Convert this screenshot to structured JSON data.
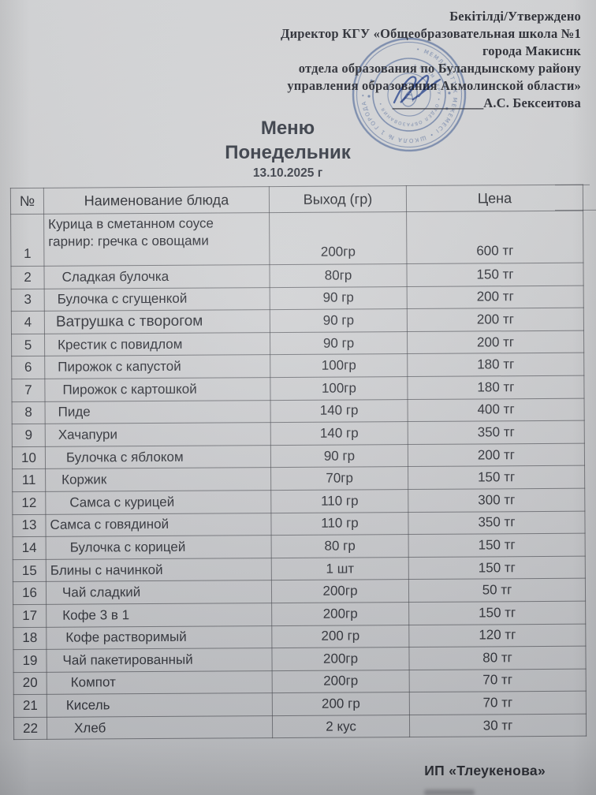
{
  "approval": {
    "lines": [
      "Бекітілді/Утверждено",
      "Директор КГУ «Общеобразовательная школа №1",
      "города Макиснк",
      "отдела образования по Буландынскому району",
      "управления образования Акмолинской области»"
    ],
    "signature_underscores": "______________",
    "signatory": "А.С. Бексеитова"
  },
  "title": {
    "menu": "Меню",
    "day": "Понедельник",
    "date": "13.10.2025 г"
  },
  "stamp": {
    "color": "#4e6fae",
    "outer_ring_text": "• МЕМЛЕКЕТТІК МЕКЕМЕСІ • ШКОЛА № 1 ГОРОДА •",
    "inner_ring_text": "• БІЛІМ БЕРУ • ОТДЕЛ ОБРАЗОВАНИЯ •"
  },
  "table": {
    "headers": {
      "num": "№",
      "name": "Наименование блюда",
      "weight": "Выход (гр)",
      "price": "Цена"
    },
    "rows": [
      {
        "num": "1",
        "name_lines": [
          "Курица в сметанном соусе",
          "гарнир: гречка с овощами"
        ],
        "name": "Курица в сметанном соусе гарнир: гречка с овощами",
        "weight": "200гр",
        "price": "600 тг",
        "indent": 5
      },
      {
        "num": "2",
        "name": "Сладкая булочка",
        "weight": "80гр",
        "price": "150 тг",
        "indent": 22
      },
      {
        "num": "3",
        "name": "Булочка с сгущенкой",
        "weight": "90 гр",
        "price": "200 тг",
        "indent": 16
      },
      {
        "num": "4",
        "name": "Ватрушка с творогом",
        "weight": "90 гр",
        "price": "200 тг",
        "indent": 14,
        "large": true
      },
      {
        "num": "5",
        "name": "Крестик с повидлом",
        "weight": "90 гр",
        "price": "200 тг",
        "indent": 16
      },
      {
        "num": "6",
        "name": "Пирожок с капустой",
        "weight": "100гр",
        "price": "180 тг",
        "indent": 16
      },
      {
        "num": "7",
        "name": "Пирожок с картошкой",
        "weight": "100гр",
        "price": "180 тг",
        "indent": 22
      },
      {
        "num": "8",
        "name": "Пиде",
        "weight": "140 гр",
        "price": "400 тг",
        "indent": 16
      },
      {
        "num": "9",
        "name": "Хачапури",
        "weight": "140 гр",
        "price": "350 тг",
        "indent": 16
      },
      {
        "num": "10",
        "name": "Булочка с яблоком",
        "weight": "90 гр",
        "price": "200 тг",
        "indent": 26
      },
      {
        "num": "11",
        "name": "Коржик",
        "weight": "70гр",
        "price": "150 тг",
        "indent": 20
      },
      {
        "num": "12",
        "name": "Самса с курицей",
        "weight": "110 гр",
        "price": "300 тг",
        "indent": 30
      },
      {
        "num": "13",
        "name": "Самса с говядиной",
        "weight": "110 гр",
        "price": "350 тг",
        "indent": 5
      },
      {
        "num": "14",
        "name": "Булочка с корицей",
        "weight": "80 гр",
        "price": "150 тг",
        "indent": 30
      },
      {
        "num": "15",
        "name": "Блины с начинкой",
        "weight": "1 шт",
        "price": "150 тг",
        "indent": 5
      },
      {
        "num": "16",
        "name": "Чай сладкий",
        "weight": "200гр",
        "price": "50 тг",
        "indent": 20
      },
      {
        "num": "17",
        "name": "Кофе 3 в 1",
        "weight": "200гр",
        "price": "150 тг",
        "indent": 20
      },
      {
        "num": "18",
        "name": "Кофе растворимый",
        "weight": "200 гр",
        "price": "120 тг",
        "indent": 24
      },
      {
        "num": "19",
        "name": "Чай пакетированный",
        "weight": "200гр",
        "price": "80 тг",
        "indent": 20
      },
      {
        "num": "20",
        "name": "Компот",
        "weight": "200гр",
        "price": "70 тг",
        "indent": 30
      },
      {
        "num": "21",
        "name": "Кисель",
        "weight": "200 гр",
        "price": "70 тг",
        "indent": 24
      },
      {
        "num": "22",
        "name": "Хлеб",
        "weight": "2 кус",
        "price": "30 тг",
        "indent": 34
      }
    ]
  },
  "footer": {
    "vendor": "ИП «Тлеукенова»"
  },
  "colors": {
    "paper": "#d0d1d4",
    "ink": "#33353c",
    "stamp_blue": "#4e6fae",
    "pen_blue": "#3c5cae"
  }
}
